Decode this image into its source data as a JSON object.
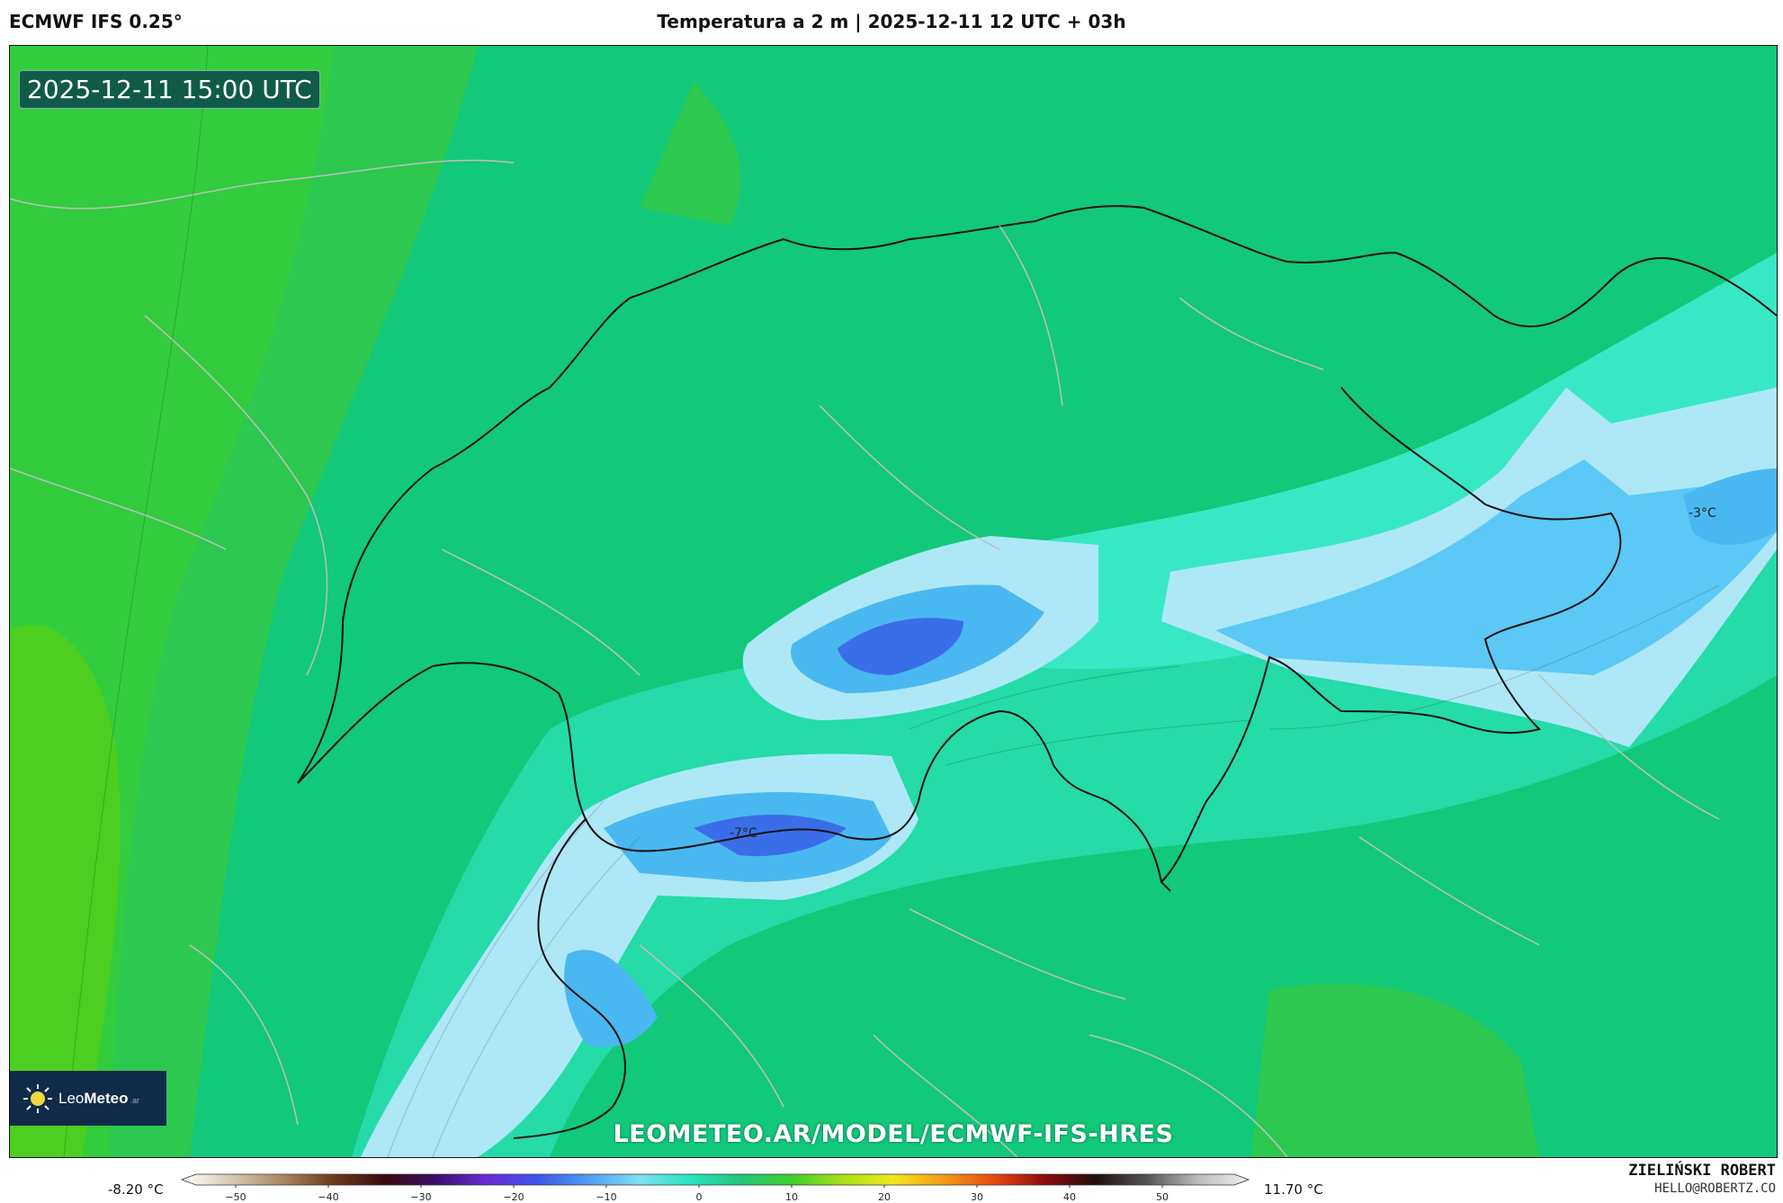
{
  "header": {
    "model": "ECMWF IFS 0.25°",
    "title": "Temperatura a 2 m | 2025-12-11 12 UTC + 03h"
  },
  "map": {
    "valid_time": "2025-12-11 15:00 UTC",
    "labels": [
      {
        "text": "-7°C"
      },
      {
        "text": "-3°C"
      }
    ],
    "watermark": "LEOMETEO.AR/MODEL/ECMWF-IFS-HRES",
    "logo": {
      "brand_light": "Leo",
      "brand_bold": "Meteo",
      "suffix": ".ar"
    }
  },
  "colorbar": {
    "min_label": "-8.20 °C",
    "max_label": "11.70 °C",
    "ticks": [
      "−50",
      "−40",
      "−30",
      "−20",
      "−10",
      "0",
      "10",
      "20",
      "30",
      "40",
      "50"
    ],
    "colors": [
      "#ffffff",
      "#d7c7b0",
      "#a88560",
      "#6b3a1a",
      "#3a0a10",
      "#3d0c6a",
      "#6a2bd8",
      "#3d56e8",
      "#4f9cf5",
      "#7ee0f5",
      "#26e5c0",
      "#20c77c",
      "#3ecf2a",
      "#a6e01a",
      "#f3e81c",
      "#f39a17",
      "#e8480f",
      "#8c0a0a",
      "#201010",
      "#555555",
      "#bbbbbb",
      "#f0f0f0"
    ]
  },
  "credit": {
    "name": "ZIELIŃSKI ROBERT",
    "email": "HELLO@ROBERTZ.CO"
  },
  "palette": {
    "green_base": "#22c46a",
    "teal": "#28e0b0",
    "light_blue": "#aee8f6",
    "blue": "#4ab8f0",
    "deep_blue": "#3a6ee8",
    "bright_green": "#4ccf20"
  }
}
